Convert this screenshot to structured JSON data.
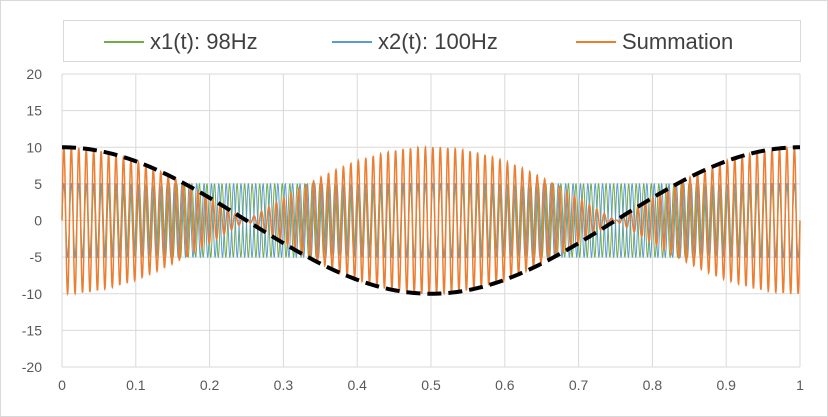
{
  "chart_data": {
    "type": "line",
    "title": "",
    "xlabel": "",
    "ylabel": "",
    "xlim": [
      0,
      1
    ],
    "ylim": [
      -20,
      20
    ],
    "x_ticks": [
      "0",
      "0.1",
      "0.2",
      "0.3",
      "0.4",
      "0.5",
      "0.6",
      "0.7",
      "0.8",
      "0.9",
      "1"
    ],
    "y_ticks": [
      "20",
      "15",
      "10",
      "5",
      "0",
      "-5",
      "-10",
      "-15",
      "-20"
    ],
    "grid": true,
    "legend_position": "top",
    "series": [
      {
        "name": "x1(t): 98Hz",
        "color": "#70ad47",
        "amplitude": 5,
        "frequency_hz": 98
      },
      {
        "name": "x2(t): 100Hz",
        "color": "#5b9bd5",
        "amplitude": 5,
        "frequency_hz": 100
      },
      {
        "name": "Summation",
        "color": "#ed7d31",
        "envelope_peak": 10
      }
    ],
    "envelope": {
      "color": "#000000",
      "style": "dashed",
      "values_at_x": {
        "0": 10,
        "0.25": 0,
        "0.5": -10,
        "0.75": 0,
        "1": 10
      }
    }
  }
}
